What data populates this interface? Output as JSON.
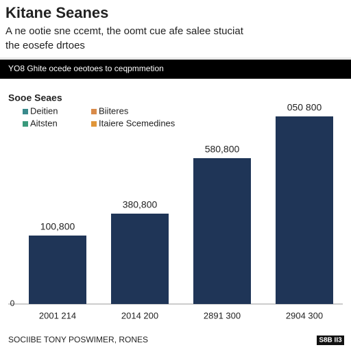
{
  "chart_data": {
    "type": "bar",
    "title": "Kitane Seanes",
    "subtitle": [
      "A ne ootie sne ccemt, the oomt cue afe salee stuciat",
      "the eosefe drtoes"
    ],
    "banner": "YO8 Ghite ocede oeotoes to ceqpmmetion",
    "legend_title": "Sooe Seaes",
    "legend": [
      {
        "name": "Deitien",
        "color": "#3a8a8c"
      },
      {
        "name": "Aitsten",
        "color": "#3a9a7c"
      },
      {
        "name": "Biiteres",
        "color": "#d98b4a"
      },
      {
        "name": "Itaiere Scemedines",
        "color": "#e0963a"
      }
    ],
    "categories": [
      "2001 214",
      "2014 200",
      "2891 300",
      "2904 300"
    ],
    "values": [
      100,
      132,
      213,
      274
    ],
    "bar_annotations": [
      "100,800",
      "380,800",
      "580,800",
      "050 800"
    ],
    "color": "#1f3557",
    "ylim": [
      0,
      300
    ],
    "yticks": [
      0
    ],
    "source": "SOCIIBE TONY POSWIMER, RONES",
    "logo": "S8B II3"
  }
}
